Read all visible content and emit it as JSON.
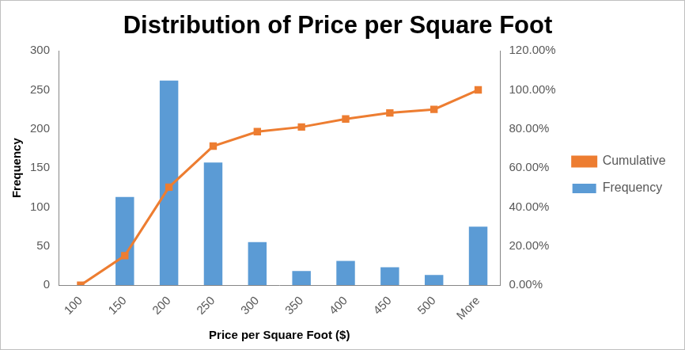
{
  "chart_data": {
    "type": "bar",
    "title": "Distribution of Price per Square Foot",
    "x_label": "Price per Square Foot ($)",
    "y_label": "Frequency",
    "categories": [
      "100",
      "150",
      "200",
      "250",
      "300",
      "350",
      "400",
      "450",
      "500",
      "More"
    ],
    "series": [
      {
        "name": "Frequency",
        "type": "bar",
        "color": "#5b9bd5",
        "values": [
          0,
          113,
          262,
          157,
          55,
          18,
          31,
          23,
          13,
          75
        ]
      },
      {
        "name": "Cumulative %",
        "type": "line",
        "axis": "y2",
        "color": "#ed7d31",
        "marker": "square",
        "line_style": "solid",
        "values": [
          0,
          15.1,
          50.2,
          71.2,
          78.6,
          81.0,
          85.1,
          88.2,
          90.0,
          100
        ]
      }
    ],
    "ylim": [
      0,
      300
    ],
    "yticks": [
      0,
      50,
      100,
      150,
      200,
      250,
      300
    ],
    "y2lim": [
      0,
      120
    ],
    "y2ticks": [
      {
        "value": 0,
        "label": "0.00%"
      },
      {
        "value": 20,
        "label": "20.00%"
      },
      {
        "value": 40,
        "label": "40.00%"
      },
      {
        "value": 60,
        "label": "60.00%"
      },
      {
        "value": 80,
        "label": "80.00%"
      },
      {
        "value": 100,
        "label": "100.00%"
      },
      {
        "value": 120,
        "label": "120.00%"
      }
    ],
    "grid": false,
    "legend": "right"
  }
}
